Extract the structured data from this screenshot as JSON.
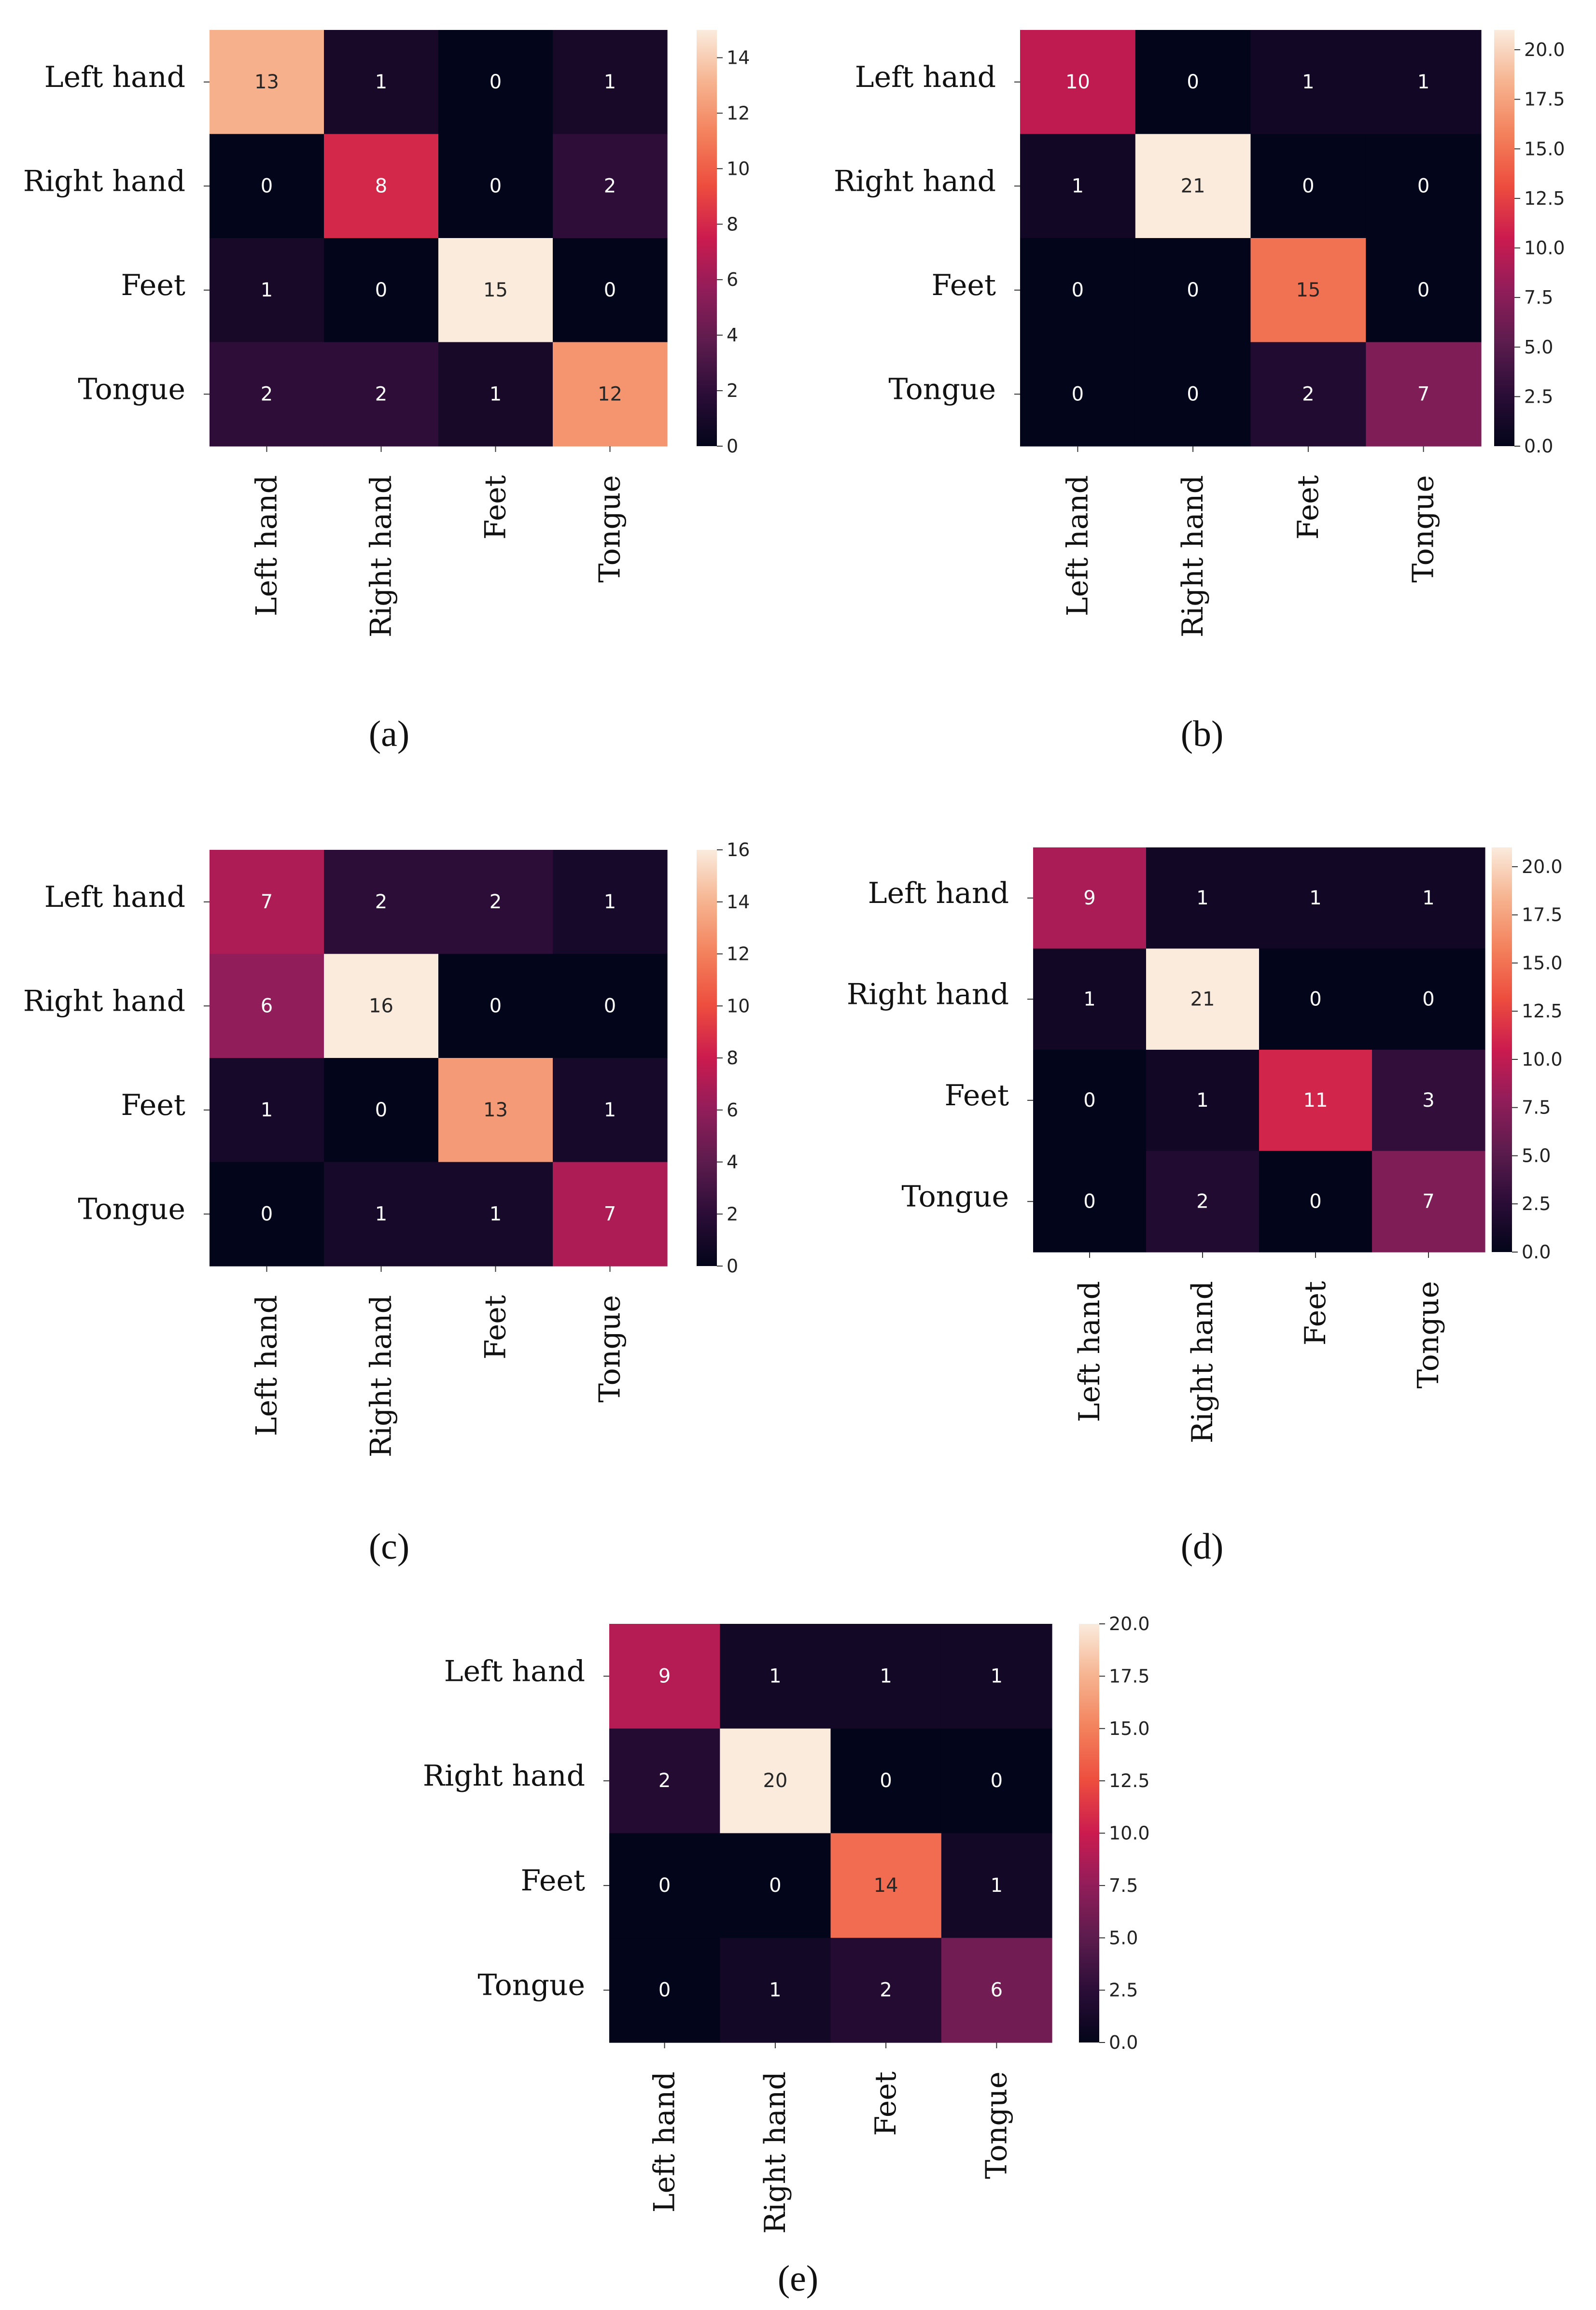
{
  "colormap": [
    "#03051a",
    "#2b0d37",
    "#5c1c4d",
    "#911d5a",
    "#cb1b4f",
    "#ed4d3e",
    "#f3815c",
    "#f6b38f",
    "#faebdd"
  ],
  "chart_data": [
    {
      "type": "heatmap",
      "caption": "(a)",
      "rows": [
        "Left hand",
        "Right hand",
        "Feet",
        "Tongue"
      ],
      "cols": [
        "Left hand",
        "Right hand",
        "Feet",
        "Tongue"
      ],
      "values": [
        [
          13,
          1,
          0,
          1
        ],
        [
          0,
          8,
          0,
          2
        ],
        [
          1,
          0,
          15,
          0
        ],
        [
          2,
          2,
          1,
          12
        ]
      ],
      "vmin": 0,
      "vmax": 15,
      "colorbar_ticks": [
        0,
        2,
        4,
        6,
        8,
        10,
        12,
        14
      ],
      "colorbar_tick_labels": [
        "0",
        "2",
        "4",
        "6",
        "8",
        "10",
        "12",
        "14"
      ]
    },
    {
      "type": "heatmap",
      "caption": "(b)",
      "rows": [
        "Left hand",
        "Right hand",
        "Feet",
        "Tongue"
      ],
      "cols": [
        "Left hand",
        "Right hand",
        "Feet",
        "Tongue"
      ],
      "values": [
        [
          10,
          0,
          1,
          1
        ],
        [
          1,
          21,
          0,
          0
        ],
        [
          0,
          0,
          15,
          0
        ],
        [
          0,
          0,
          2,
          7
        ]
      ],
      "vmin": 0,
      "vmax": 21,
      "colorbar_ticks": [
        0,
        2.5,
        5,
        7.5,
        10,
        12.5,
        15,
        17.5,
        20
      ],
      "colorbar_tick_labels": [
        "0.0",
        "2.5",
        "5.0",
        "7.5",
        "10.0",
        "12.5",
        "15.0",
        "17.5",
        "20.0"
      ]
    },
    {
      "type": "heatmap",
      "caption": "(c)",
      "rows": [
        "Left hand",
        "Right hand",
        "Feet",
        "Tongue"
      ],
      "cols": [
        "Left hand",
        "Right hand",
        "Feet",
        "Tongue"
      ],
      "values": [
        [
          7,
          2,
          2,
          1
        ],
        [
          6,
          16,
          0,
          0
        ],
        [
          1,
          0,
          13,
          1
        ],
        [
          0,
          1,
          1,
          7
        ]
      ],
      "vmin": 0,
      "vmax": 16,
      "colorbar_ticks": [
        0,
        2,
        4,
        6,
        8,
        10,
        12,
        14,
        16
      ],
      "colorbar_tick_labels": [
        "0",
        "2",
        "4",
        "6",
        "8",
        "10",
        "12",
        "14",
        "16"
      ]
    },
    {
      "type": "heatmap",
      "caption": "(d)",
      "rows": [
        "Left hand",
        "Right hand",
        "Feet",
        "Tongue"
      ],
      "cols": [
        "Left hand",
        "Right hand",
        "Feet",
        "Tongue"
      ],
      "values": [
        [
          9,
          1,
          1,
          1
        ],
        [
          1,
          21,
          0,
          0
        ],
        [
          0,
          1,
          11,
          3
        ],
        [
          0,
          2,
          0,
          7
        ]
      ],
      "vmin": 0,
      "vmax": 21,
      "colorbar_ticks": [
        0,
        2.5,
        5,
        7.5,
        10,
        12.5,
        15,
        17.5,
        20
      ],
      "colorbar_tick_labels": [
        "0.0",
        "2.5",
        "5.0",
        "7.5",
        "10.0",
        "12.5",
        "15.0",
        "17.5",
        "20.0"
      ]
    },
    {
      "type": "heatmap",
      "caption": "(e)",
      "rows": [
        "Left hand",
        "Right hand",
        "Feet",
        "Tongue"
      ],
      "cols": [
        "Left hand",
        "Right hand",
        "Feet",
        "Tongue"
      ],
      "values": [
        [
          9,
          1,
          1,
          1
        ],
        [
          2,
          20,
          0,
          0
        ],
        [
          0,
          0,
          14,
          1
        ],
        [
          0,
          1,
          2,
          6
        ]
      ],
      "vmin": 0,
      "vmax": 20,
      "colorbar_ticks": [
        0,
        2.5,
        5,
        7.5,
        10,
        12.5,
        15,
        17.5,
        20
      ],
      "colorbar_tick_labels": [
        "0.0",
        "2.5",
        "5.0",
        "7.5",
        "10.0",
        "12.5",
        "15.0",
        "17.5",
        "20.0"
      ]
    }
  ]
}
